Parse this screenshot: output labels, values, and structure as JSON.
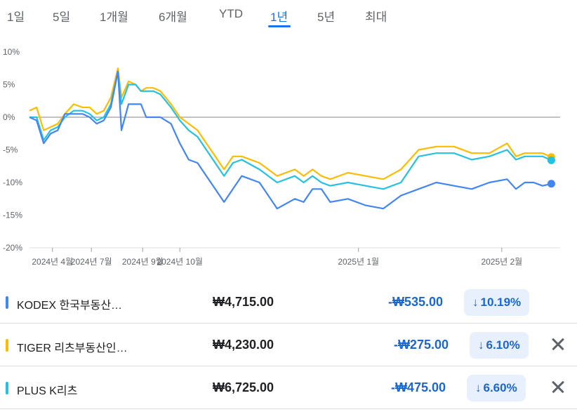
{
  "tabs": [
    {
      "label": "1일"
    },
    {
      "label": "5일"
    },
    {
      "label": "1개월"
    },
    {
      "label": "6개월"
    },
    {
      "label": "YTD"
    },
    {
      "label": "1년"
    },
    {
      "label": "5년"
    },
    {
      "label": "최대"
    }
  ],
  "active_tab": "1년",
  "chart_data": {
    "type": "line",
    "title": "",
    "xlabel": "",
    "ylabel": "",
    "y_unit": "%",
    "ylim": [
      -20,
      10
    ],
    "y_ticks": [
      "10%",
      "5%",
      "0%",
      "-5%",
      "-10%",
      "-15%",
      "-20%"
    ],
    "x_tick_labels": [
      "2024년 4월",
      "2024년 7월",
      "2024년 9월",
      "2024년 10월",
      "2025년 1월",
      "2025년 2월"
    ],
    "x_tick_positions": [
      0.13,
      0.35,
      0.64,
      0.85,
      1.86,
      2.67
    ],
    "baseline": 0,
    "grid": false,
    "x_range": [
      0,
      3
    ],
    "series": [
      {
        "name": "KODEX 한국부동산…",
        "color": "#4285f4",
        "x": [
          0,
          0.04,
          0.08,
          0.12,
          0.16,
          0.2,
          0.25,
          0.3,
          0.34,
          0.38,
          0.42,
          0.46,
          0.5,
          0.52,
          0.56,
          0.6,
          0.63,
          0.66,
          0.7,
          0.74,
          0.8,
          0.85,
          0.9,
          0.95,
          1.0,
          1.05,
          1.1,
          1.15,
          1.2,
          1.3,
          1.4,
          1.5,
          1.55,
          1.6,
          1.65,
          1.7,
          1.8,
          1.9,
          2.0,
          2.1,
          2.2,
          2.3,
          2.4,
          2.5,
          2.6,
          2.7,
          2.75,
          2.8,
          2.85,
          2.9,
          2.95
        ],
        "y": [
          0,
          -0.5,
          -4,
          -2.5,
          -2,
          0.5,
          0.5,
          0.5,
          0,
          -1,
          -0.5,
          1.5,
          7,
          -2,
          2,
          2,
          2,
          0,
          0,
          0,
          -1,
          -4,
          -6.5,
          -7,
          -9,
          -11,
          -13,
          -11,
          -9,
          -10,
          -14,
          -12.5,
          -13,
          -11,
          -11,
          -13,
          -12.5,
          -13.5,
          -14,
          -12,
          -11,
          -10,
          -10.5,
          -11,
          -10,
          -9.5,
          -11,
          -10,
          -10,
          -10.5,
          -10.19
        ]
      },
      {
        "name": "TIGER 리츠부동산인…",
        "color": "#fbbc04",
        "x": [
          0,
          0.04,
          0.08,
          0.12,
          0.16,
          0.2,
          0.25,
          0.3,
          0.34,
          0.38,
          0.42,
          0.46,
          0.5,
          0.52,
          0.56,
          0.6,
          0.63,
          0.66,
          0.7,
          0.74,
          0.8,
          0.85,
          0.9,
          0.95,
          1.0,
          1.05,
          1.1,
          1.15,
          1.2,
          1.3,
          1.4,
          1.5,
          1.55,
          1.6,
          1.65,
          1.7,
          1.8,
          1.9,
          2.0,
          2.1,
          2.2,
          2.3,
          2.4,
          2.5,
          2.6,
          2.7,
          2.75,
          2.8,
          2.85,
          2.9,
          2.95
        ],
        "y": [
          1,
          1.5,
          -2,
          -1.5,
          -1,
          0.5,
          2,
          1.5,
          1.5,
          0.5,
          1,
          3,
          7.5,
          3,
          5.5,
          5,
          4,
          4.5,
          4.5,
          4,
          2,
          0,
          -1,
          -2,
          -4,
          -6,
          -8,
          -6,
          -6,
          -7,
          -9,
          -8,
          -9,
          -8,
          -9,
          -9.5,
          -8.5,
          -9,
          -9.5,
          -8,
          -5,
          -4.5,
          -4.5,
          -5.5,
          -5.5,
          -4,
          -6,
          -5.5,
          -5.5,
          -5.5,
          -6.1
        ]
      },
      {
        "name": "PLUS K리츠",
        "color": "#24c1e0",
        "x": [
          0,
          0.04,
          0.08,
          0.12,
          0.16,
          0.2,
          0.25,
          0.3,
          0.34,
          0.38,
          0.42,
          0.46,
          0.5,
          0.52,
          0.56,
          0.6,
          0.63,
          0.66,
          0.7,
          0.74,
          0.8,
          0.85,
          0.9,
          0.95,
          1.0,
          1.05,
          1.1,
          1.15,
          1.2,
          1.3,
          1.4,
          1.5,
          1.55,
          1.6,
          1.65,
          1.7,
          1.8,
          1.9,
          2.0,
          2.1,
          2.2,
          2.3,
          2.4,
          2.5,
          2.6,
          2.7,
          2.75,
          2.8,
          2.85,
          2.9,
          2.95
        ],
        "y": [
          0,
          0,
          -3.5,
          -2,
          -1.5,
          0,
          1,
          1,
          0.5,
          -0.5,
          0,
          2,
          7,
          2,
          5,
          5,
          4,
          4,
          4,
          3.5,
          1.5,
          -0.5,
          -2,
          -3,
          -5,
          -7,
          -9,
          -7,
          -6.5,
          -8,
          -10,
          -9,
          -10,
          -9,
          -10,
          -10.5,
          -10,
          -10.5,
          -11,
          -10,
          -6,
          -5.5,
          -5.5,
          -6.5,
          -6,
          -5,
          -6.5,
          -6,
          -6,
          -6,
          -6.6
        ]
      }
    ]
  },
  "rows": [
    {
      "name": "KODEX 한국부동산…",
      "price": "₩4,715.00",
      "change": "-₩535.00",
      "pct": "10.19%",
      "color": "#4285f4",
      "removable": false
    },
    {
      "name": "TIGER 리츠부동산인…",
      "price": "₩4,230.00",
      "change": "-₩275.00",
      "pct": "6.10%",
      "color": "#fbbc04",
      "removable": true
    },
    {
      "name": "PLUS K리츠",
      "price": "₩6,725.00",
      "change": "-₩475.00",
      "pct": "6.60%",
      "color": "#24c1e0",
      "removable": true
    }
  ],
  "arrow_icon": "arrow-down-icon",
  "close_icon": "close-icon"
}
